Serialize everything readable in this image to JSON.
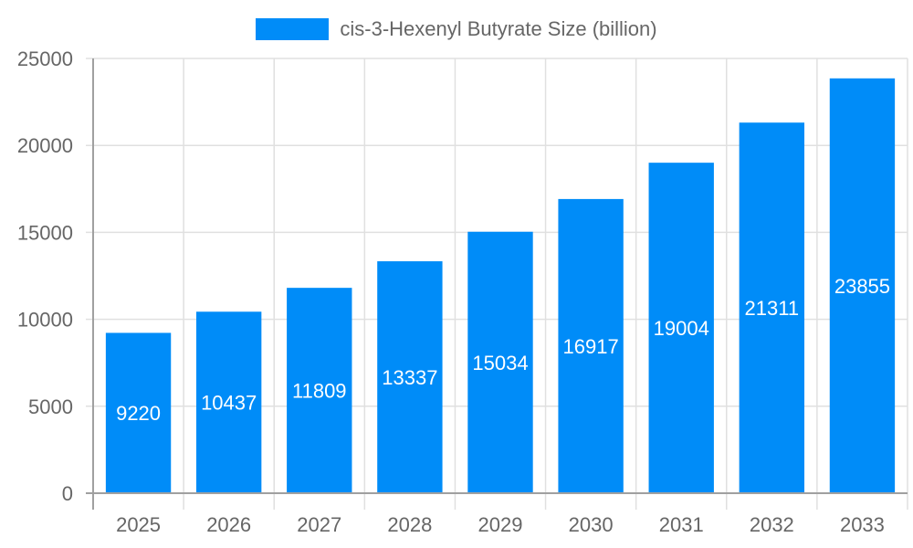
{
  "chart_data": {
    "type": "bar",
    "title": "",
    "legend": [
      "cis-3-Hexenyl Butyrate Size (billion)"
    ],
    "legend_position": "top",
    "categories": [
      "2025",
      "2026",
      "2027",
      "2028",
      "2029",
      "2030",
      "2031",
      "2032",
      "2033"
    ],
    "series": [
      {
        "name": "cis-3-Hexenyl Butyrate Size (billion)",
        "values": [
          9220,
          10437,
          11809,
          13337,
          15034,
          16917,
          19004,
          21311,
          23855
        ],
        "color": "#008cf8"
      }
    ],
    "xlabel": "",
    "ylabel": "",
    "ylim": [
      0,
      25000
    ],
    "yticks": [
      0,
      5000,
      10000,
      15000,
      20000,
      25000
    ],
    "grid": true,
    "data_labels": true
  },
  "legend": {
    "label": "cis-3-Hexenyl Butyrate Size (billion)",
    "color": "#008cf8"
  }
}
